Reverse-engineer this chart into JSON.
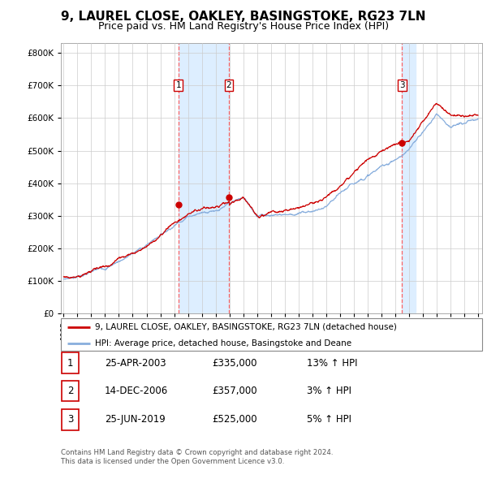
{
  "title": "9, LAUREL CLOSE, OAKLEY, BASINGSTOKE, RG23 7LN",
  "subtitle": "Price paid vs. HM Land Registry's House Price Index (HPI)",
  "title_fontsize": 11,
  "subtitle_fontsize": 9,
  "ytick_values": [
    0,
    100000,
    200000,
    300000,
    400000,
    500000,
    600000,
    700000,
    800000
  ],
  "ylim": [
    0,
    830000
  ],
  "xlim_start": 1994.8,
  "xlim_end": 2025.3,
  "sale_dates": [
    2003.31,
    2006.96,
    2019.49
  ],
  "sale_prices": [
    335000,
    357000,
    525000
  ],
  "sale_labels": [
    "1",
    "2",
    "3"
  ],
  "red_line_color": "#cc0000",
  "blue_line_color": "#88aedd",
  "shade_color": "#ddeeff",
  "dashed_line_color": "#ff5555",
  "marker_box_color": "#cc0000",
  "legend_red_label": "9, LAUREL CLOSE, OAKLEY, BASINGSTOKE, RG23 7LN (detached house)",
  "legend_blue_label": "HPI: Average price, detached house, Basingstoke and Deane",
  "sale_info": [
    {
      "num": "1",
      "date": "25-APR-2003",
      "price": "£335,000",
      "pct": "13%",
      "dir": "↑",
      "ref": "HPI"
    },
    {
      "num": "2",
      "date": "14-DEC-2006",
      "price": "£357,000",
      "pct": "3%",
      "dir": "↑",
      "ref": "HPI"
    },
    {
      "num": "3",
      "date": "25-JUN-2019",
      "price": "£525,000",
      "pct": "5%",
      "dir": "↑",
      "ref": "HPI"
    }
  ],
  "footer_line1": "Contains HM Land Registry data © Crown copyright and database right 2024.",
  "footer_line2": "This data is licensed under the Open Government Licence v3.0.",
  "bg_color": "#ffffff",
  "plot_bg_color": "#ffffff",
  "grid_color": "#cccccc"
}
